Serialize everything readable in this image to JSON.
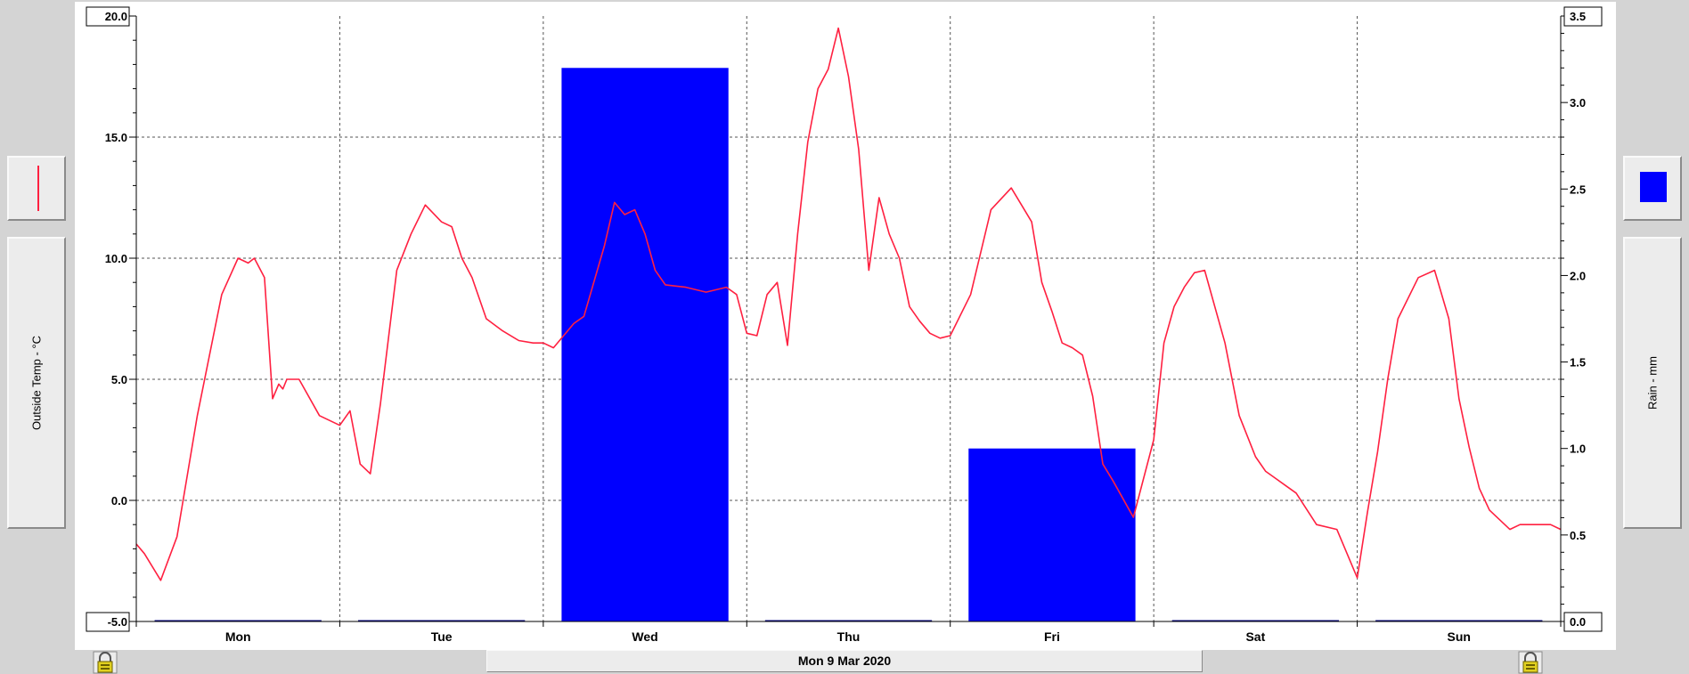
{
  "app": {
    "date_label": "Mon 9 Mar 2020",
    "left_panel_icon": "red-line-legend-icon",
    "right_panel_icon": "blue-square-legend-icon",
    "lock_icon": "padlock-icon"
  },
  "chart_data": {
    "type": "line+bar",
    "days": [
      "Mon",
      "Tue",
      "Wed",
      "Thu",
      "Fri",
      "Sat",
      "Sun"
    ],
    "left_axis": {
      "label": "Outside Temp - °C",
      "range": [
        -5,
        20
      ],
      "ticks": [
        "20.0",
        "15.0",
        "10.0",
        "5.0",
        "0.0",
        "-5.0"
      ]
    },
    "right_axis": {
      "label": "Rain - mm",
      "range": [
        0,
        3.5
      ],
      "ticks": [
        "3.5",
        "3.0",
        "2.5",
        "2.0",
        "1.5",
        "1.0",
        "0.5",
        "0.0"
      ]
    },
    "grid": true,
    "rain_series": {
      "name": "Rain - mm",
      "color": "#0000ff",
      "baseline_color": "#000080",
      "values": [
        0.0,
        0.0,
        3.2,
        0.0,
        1.0,
        0.0,
        0.0
      ]
    },
    "temp_series": {
      "name": "Outside Temp - °C",
      "color": "#ff2040",
      "x_days": [
        0.0,
        0.04,
        0.12,
        0.2,
        0.3,
        0.42,
        0.5,
        0.55,
        0.58,
        0.63,
        0.67,
        0.7,
        0.72,
        0.74,
        0.8,
        0.9,
        1.0,
        1.05,
        1.1,
        1.15,
        1.2,
        1.28,
        1.35,
        1.42,
        1.5,
        1.55,
        1.6,
        1.65,
        1.72,
        1.8,
        1.88,
        1.95,
        2.0,
        2.05,
        2.1,
        2.15,
        2.2,
        2.3,
        2.35,
        2.4,
        2.45,
        2.5,
        2.55,
        2.6,
        2.7,
        2.8,
        2.9,
        2.95,
        3.0,
        3.05,
        3.1,
        3.15,
        3.2,
        3.25,
        3.3,
        3.35,
        3.4,
        3.45,
        3.5,
        3.55,
        3.6,
        3.65,
        3.7,
        3.75,
        3.8,
        3.85,
        3.9,
        3.95,
        4.0,
        4.1,
        4.2,
        4.3,
        4.35,
        4.4,
        4.45,
        4.5,
        4.55,
        4.6,
        4.65,
        4.7,
        4.75,
        4.8,
        4.9,
        5.0,
        5.05,
        5.1,
        5.15,
        5.2,
        5.25,
        5.35,
        5.42,
        5.5,
        5.55,
        5.6,
        5.65,
        5.7,
        5.8,
        5.9,
        6.0,
        6.05,
        6.1,
        6.15,
        6.2,
        6.3,
        6.38,
        6.45,
        6.5,
        6.55,
        6.6,
        6.65,
        6.7,
        6.75,
        6.8,
        6.9,
        6.95,
        7.0
      ],
      "values": [
        -1.8,
        -2.2,
        -3.3,
        -1.5,
        3.5,
        8.5,
        10.0,
        9.8,
        10.0,
        9.2,
        4.2,
        4.8,
        4.6,
        5.0,
        5.0,
        3.5,
        3.1,
        3.7,
        1.5,
        1.1,
        4.0,
        9.5,
        11.0,
        12.2,
        11.5,
        11.3,
        10.0,
        9.2,
        7.5,
        7.0,
        6.6,
        6.5,
        6.5,
        6.3,
        6.8,
        7.3,
        7.6,
        10.5,
        12.3,
        11.8,
        12.0,
        11.0,
        9.5,
        8.9,
        8.8,
        8.6,
        8.8,
        8.5,
        6.9,
        6.8,
        8.5,
        9.0,
        6.4,
        11.0,
        14.8,
        17.0,
        17.8,
        19.5,
        17.5,
        14.5,
        9.5,
        12.5,
        11.0,
        10.0,
        8.0,
        7.4,
        6.9,
        6.7,
        6.8,
        8.5,
        12.0,
        12.9,
        12.2,
        11.5,
        9.0,
        7.8,
        6.5,
        6.3,
        6.0,
        4.3,
        1.5,
        0.8,
        -0.7,
        2.5,
        6.5,
        8.0,
        8.8,
        9.4,
        9.5,
        6.5,
        3.5,
        1.8,
        1.2,
        0.9,
        0.6,
        0.3,
        -1.0,
        -1.2,
        -3.2,
        -0.5,
        2.0,
        5.0,
        7.5,
        9.2,
        9.5,
        7.5,
        4.2,
        2.2,
        0.5,
        -0.4,
        -0.8,
        -1.2,
        -1.0,
        -1.0,
        -1.0,
        -1.2
      ]
    }
  }
}
